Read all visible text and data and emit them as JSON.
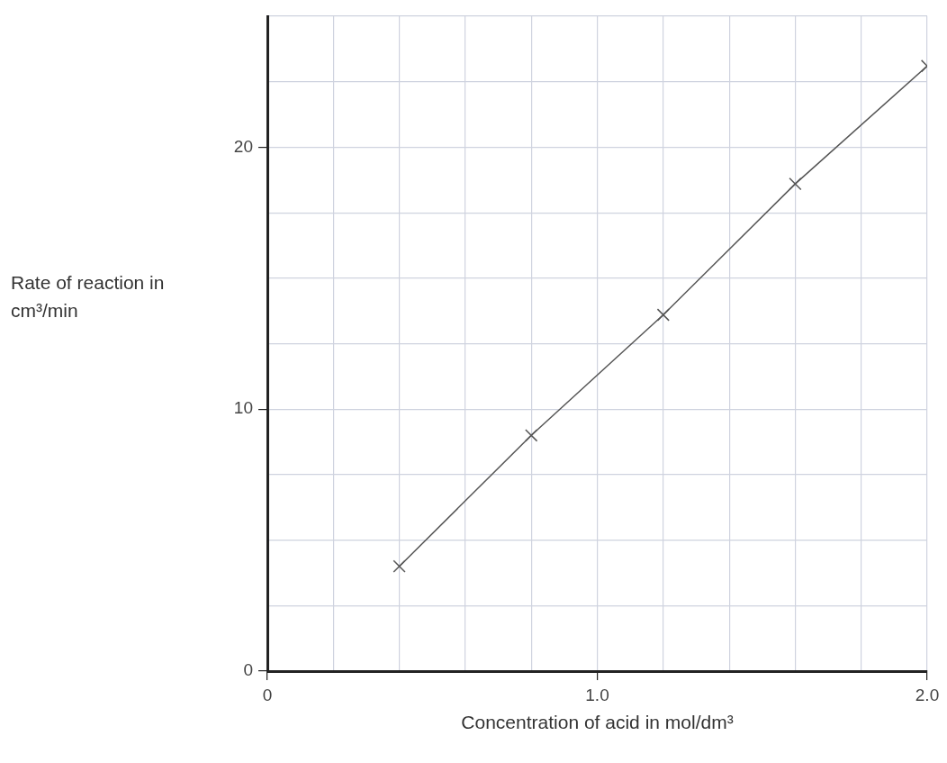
{
  "chart_data": {
    "type": "line",
    "xlabel": "Concentration of acid in mol/dm³",
    "ylabel": "Rate of reaction in cm³/min",
    "x": [
      0.4,
      0.8,
      1.2,
      1.6,
      2.0
    ],
    "series": [
      {
        "color": "#555555",
        "values": [
          4.0,
          9.0,
          13.6,
          18.6,
          23.1
        ]
      }
    ],
    "xlim": [
      0,
      2.0
    ],
    "ylim": [
      0,
      25
    ],
    "xticks": [
      0,
      {
        "value": 0.2,
        "label": null
      },
      {
        "value": 0.4,
        "label": null
      },
      {
        "value": 0.6,
        "label": null
      },
      {
        "value": 0.8,
        "label": null
      },
      {
        "value": 1.0,
        "label": "1.0"
      },
      {
        "value": 1.2,
        "label": null
      },
      {
        "value": 1.4,
        "label": null
      },
      {
        "value": 1.6,
        "label": null
      },
      {
        "value": 1.8,
        "label": null
      },
      {
        "value": 2.0,
        "label": "2.0"
      }
    ],
    "yticks": [
      0,
      {
        "value": 2.5,
        "label": null
      },
      {
        "value": 5,
        "label": null
      },
      {
        "value": 7.5,
        "label": null
      },
      10,
      {
        "value": 12.5,
        "label": null
      },
      {
        "value": 15,
        "label": null
      },
      {
        "value": 17.5,
        "label": null
      },
      20,
      {
        "value": 22.5,
        "label": null
      },
      {
        "value": 25,
        "label": null
      }
    ],
    "grid": true,
    "legend": false,
    "marker": "cross",
    "line_style": "solid"
  }
}
